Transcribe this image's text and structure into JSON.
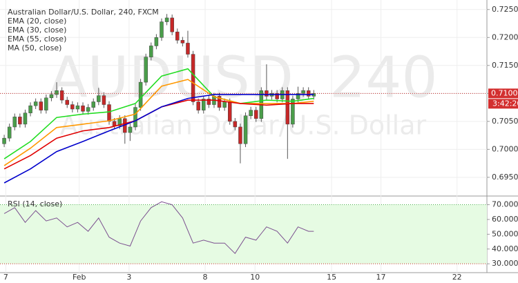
{
  "chart_data": [
    {
      "type": "candlestick",
      "title": "Australian Dollar/U.S. Dollar, 240, FXCM",
      "watermark": "AUDUSD, 240",
      "watermark_subtitle": "Australian Dollar/U.S. Dollar",
      "up_color": "#4a9d4a",
      "down_color": "#c62828",
      "x": [
        0,
        1,
        2,
        3,
        4,
        5,
        6,
        7,
        8,
        9,
        10,
        11,
        12,
        13,
        14,
        15,
        16,
        17,
        18,
        19,
        20,
        21,
        22,
        23,
        24,
        25,
        26,
        27,
        28,
        29,
        30,
        31,
        32,
        33,
        34,
        35,
        36,
        37,
        38,
        39,
        40,
        41,
        42,
        43,
        44,
        45,
        46,
        47,
        48,
        49,
        50,
        51,
        52,
        53,
        54,
        55,
        56,
        57,
        58,
        59
      ],
      "open": [
        0.701,
        0.702,
        0.704,
        0.7058,
        0.7045,
        0.7065,
        0.7078,
        0.7085,
        0.707,
        0.7092,
        0.7098,
        0.7105,
        0.7088,
        0.708,
        0.7072,
        0.7078,
        0.7068,
        0.7075,
        0.7085,
        0.7096,
        0.708,
        0.705,
        0.7042,
        0.7055,
        0.703,
        0.704,
        0.7075,
        0.712,
        0.7165,
        0.7185,
        0.72,
        0.7228,
        0.7235,
        0.721,
        0.7195,
        0.719,
        0.717,
        0.7085,
        0.707,
        0.709,
        0.708,
        0.7095,
        0.7075,
        0.7085,
        0.705,
        0.704,
        0.701,
        0.706,
        0.707,
        0.7055,
        0.7105,
        0.7095,
        0.71,
        0.709,
        0.7105,
        0.7045,
        0.709,
        0.71,
        0.7105,
        0.7095
      ],
      "high": [
        0.7026,
        0.7046,
        0.7064,
        0.7064,
        0.7071,
        0.7084,
        0.7091,
        0.7091,
        0.7098,
        0.7104,
        0.712,
        0.7111,
        0.7094,
        0.7086,
        0.7084,
        0.7084,
        0.7081,
        0.7091,
        0.711,
        0.7102,
        0.7086,
        0.7056,
        0.7061,
        0.7061,
        0.7046,
        0.7081,
        0.7126,
        0.7171,
        0.7191,
        0.7206,
        0.7234,
        0.7242,
        0.7241,
        0.7216,
        0.7201,
        0.7212,
        0.7176,
        0.7091,
        0.7096,
        0.7096,
        0.7101,
        0.7101,
        0.7091,
        0.7091,
        0.7056,
        0.7046,
        0.7066,
        0.7076,
        0.7076,
        0.7111,
        0.7152,
        0.7106,
        0.7106,
        0.7111,
        0.7111,
        0.7096,
        0.7112,
        0.7111,
        0.7111,
        0.7106
      ],
      "low": [
        0.7004,
        0.7014,
        0.7034,
        0.7039,
        0.7039,
        0.7059,
        0.7072,
        0.7064,
        0.7064,
        0.7086,
        0.7092,
        0.7082,
        0.7074,
        0.7066,
        0.7066,
        0.7062,
        0.7062,
        0.7069,
        0.7079,
        0.7074,
        0.7044,
        0.7036,
        0.7036,
        0.701,
        0.7015,
        0.7034,
        0.7069,
        0.7114,
        0.7159,
        0.7179,
        0.7194,
        0.7222,
        0.7204,
        0.7189,
        0.7184,
        0.7164,
        0.7079,
        0.7064,
        0.7064,
        0.7074,
        0.7074,
        0.7069,
        0.7069,
        0.7044,
        0.7034,
        0.6975,
        0.7004,
        0.7054,
        0.7049,
        0.7049,
        0.7089,
        0.7089,
        0.7084,
        0.7084,
        0.6983,
        0.7039,
        0.7084,
        0.7094,
        0.7089,
        0.7089
      ],
      "close": [
        0.702,
        0.704,
        0.7058,
        0.7045,
        0.7065,
        0.7078,
        0.7085,
        0.707,
        0.7092,
        0.7098,
        0.7105,
        0.7088,
        0.708,
        0.7072,
        0.7078,
        0.7068,
        0.7075,
        0.7085,
        0.7096,
        0.708,
        0.705,
        0.7042,
        0.7055,
        0.703,
        0.704,
        0.7075,
        0.712,
        0.7165,
        0.7185,
        0.72,
        0.7228,
        0.7235,
        0.721,
        0.7195,
        0.719,
        0.717,
        0.7085,
        0.707,
        0.709,
        0.708,
        0.7095,
        0.7075,
        0.7085,
        0.705,
        0.704,
        0.701,
        0.706,
        0.707,
        0.7055,
        0.7105,
        0.7095,
        0.71,
        0.709,
        0.7105,
        0.7045,
        0.709,
        0.71,
        0.7105,
        0.7095,
        0.71
      ],
      "series": [
        {
          "name": "EMA (20, close)",
          "color": "#22dd22",
          "x": [
            0,
            5,
            10,
            15,
            20,
            25,
            30,
            35,
            40,
            45,
            50,
            55,
            59
          ],
          "values": [
            0.6983,
            0.7014,
            0.7057,
            0.7063,
            0.7067,
            0.7082,
            0.7131,
            0.7144,
            0.7094,
            0.7082,
            0.7088,
            0.7086,
            0.7091
          ]
        },
        {
          "name": "EMA (30, close)",
          "color": "#ff9800",
          "x": [
            0,
            5,
            10,
            15,
            20,
            25,
            30,
            35,
            40,
            45,
            50,
            55,
            59
          ],
          "values": [
            0.6971,
            0.7002,
            0.7039,
            0.7045,
            0.7051,
            0.7063,
            0.7113,
            0.7125,
            0.7094,
            0.7082,
            0.7082,
            0.7082,
            0.7086
          ]
        },
        {
          "name": "EMA (55, close)",
          "color": "#e00000",
          "x": [
            0,
            5,
            10,
            15,
            20,
            25,
            30,
            35,
            40,
            45,
            50,
            55,
            59
          ],
          "values": [
            0.6965,
            0.6989,
            0.702,
            0.7033,
            0.7039,
            0.7051,
            0.7076,
            0.7088,
            0.7088,
            0.7082,
            0.7079,
            0.7082,
            0.7082
          ]
        },
        {
          "name": "MA (50, close)",
          "color": "#0000cc",
          "x": [
            0,
            5,
            10,
            15,
            20,
            25,
            30,
            35,
            40,
            45,
            50,
            55,
            59
          ],
          "values": [
            0.694,
            0.6965,
            0.6996,
            0.7014,
            0.7033,
            0.7051,
            0.7076,
            0.7091,
            0.7098,
            0.7098,
            0.7098,
            0.7098,
            0.7098
          ]
        }
      ],
      "last_price": 0.71,
      "last_price_label": "0.71000",
      "countdown": "3:42:20",
      "xlim": [
        -0.8,
        92
      ],
      "xticks": [
        {
          "value": 0.3,
          "label": "7"
        },
        {
          "value": 14.3,
          "label": "Feb"
        },
        {
          "value": 23.8,
          "label": "3"
        },
        {
          "value": 38.3,
          "label": "8"
        },
        {
          "value": 47.8,
          "label": "10"
        },
        {
          "value": 62.4,
          "label": "15"
        },
        {
          "value": 71.8,
          "label": "17"
        },
        {
          "value": 86.3,
          "label": "22"
        }
      ],
      "ylim": [
        0.6919,
        0.7267
      ],
      "yticks": [
        {
          "value": 0.695,
          "label": "0.69500"
        },
        {
          "value": 0.7,
          "label": "0.70000"
        },
        {
          "value": 0.705,
          "label": "0.70500"
        },
        {
          "value": 0.71,
          "label": "0.71000"
        },
        {
          "value": 0.715,
          "label": "0.71500"
        },
        {
          "value": 0.72,
          "label": "0.72000"
        },
        {
          "value": 0.725,
          "label": "0.72500"
        }
      ],
      "grid": true
    },
    {
      "type": "line",
      "title": "RSI (14, close)",
      "color": "#7b4f8f",
      "band": [
        30,
        70
      ],
      "band_color": "#e6fbe3",
      "x": [
        0,
        2,
        4,
        6,
        8,
        10,
        12,
        14,
        16,
        18,
        20,
        22,
        24,
        26,
        28,
        30,
        32,
        34,
        36,
        38,
        40,
        42,
        44,
        46,
        48,
        50,
        52,
        54,
        56,
        58,
        59
      ],
      "values": [
        64,
        68,
        58,
        66,
        59,
        61,
        55,
        58,
        52,
        61,
        48,
        44,
        42,
        59,
        68,
        72,
        70,
        61,
        44,
        46,
        44,
        44,
        37,
        48,
        46,
        55,
        52,
        44,
        55,
        52,
        52
      ],
      "xlim": [
        -0.8,
        92
      ],
      "ylim": [
        24,
        74
      ],
      "yticks": [
        {
          "value": 30,
          "label": "30.0000"
        },
        {
          "value": 40,
          "label": "40.0000"
        },
        {
          "value": 50,
          "label": "50.0000"
        },
        {
          "value": 60,
          "label": "60.0000"
        },
        {
          "value": 70,
          "label": "70.0000"
        }
      ]
    }
  ]
}
